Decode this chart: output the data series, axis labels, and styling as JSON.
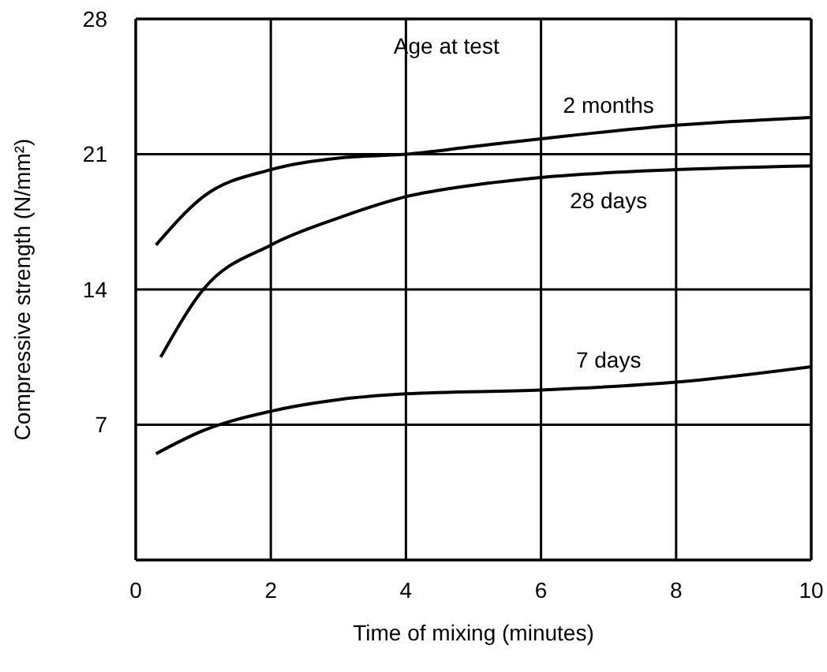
{
  "chart_data": {
    "type": "line",
    "xlabel": "Time of mixing (minutes)",
    "ylabel": "Compressive strength (N/mm²)",
    "legend_title": "Age at test",
    "xlim": [
      0,
      10
    ],
    "xticks": [
      0,
      2,
      4,
      6,
      8,
      10
    ],
    "ylim": [
      0,
      28
    ],
    "yticks": [
      {
        "value": 0,
        "label": null
      },
      7,
      14,
      21,
      28
    ],
    "grid": true,
    "marker": "none",
    "line_style": "solid",
    "series": [
      {
        "name": "2 months",
        "color": "#000000",
        "x": [
          0.3,
          1,
          2,
          3,
          4,
          5,
          6,
          8,
          10
        ],
        "values": [
          16.3,
          18.8,
          20.2,
          20.8,
          21.0,
          21.4,
          21.8,
          22.5,
          22.9
        ]
      },
      {
        "name": "28 days",
        "color": "#000000",
        "x": [
          0.37,
          1,
          2,
          3,
          4,
          5,
          6,
          8,
          10
        ],
        "values": [
          10.5,
          14.0,
          16.3,
          17.7,
          18.8,
          19.4,
          19.8,
          20.2,
          20.4
        ]
      },
      {
        "name": "7 days",
        "color": "#000000",
        "x": [
          0.3,
          1,
          2,
          3,
          4,
          6,
          8,
          10
        ],
        "values": [
          5.5,
          6.7,
          7.7,
          8.3,
          8.6,
          8.8,
          9.2,
          10.0
        ]
      }
    ]
  }
}
